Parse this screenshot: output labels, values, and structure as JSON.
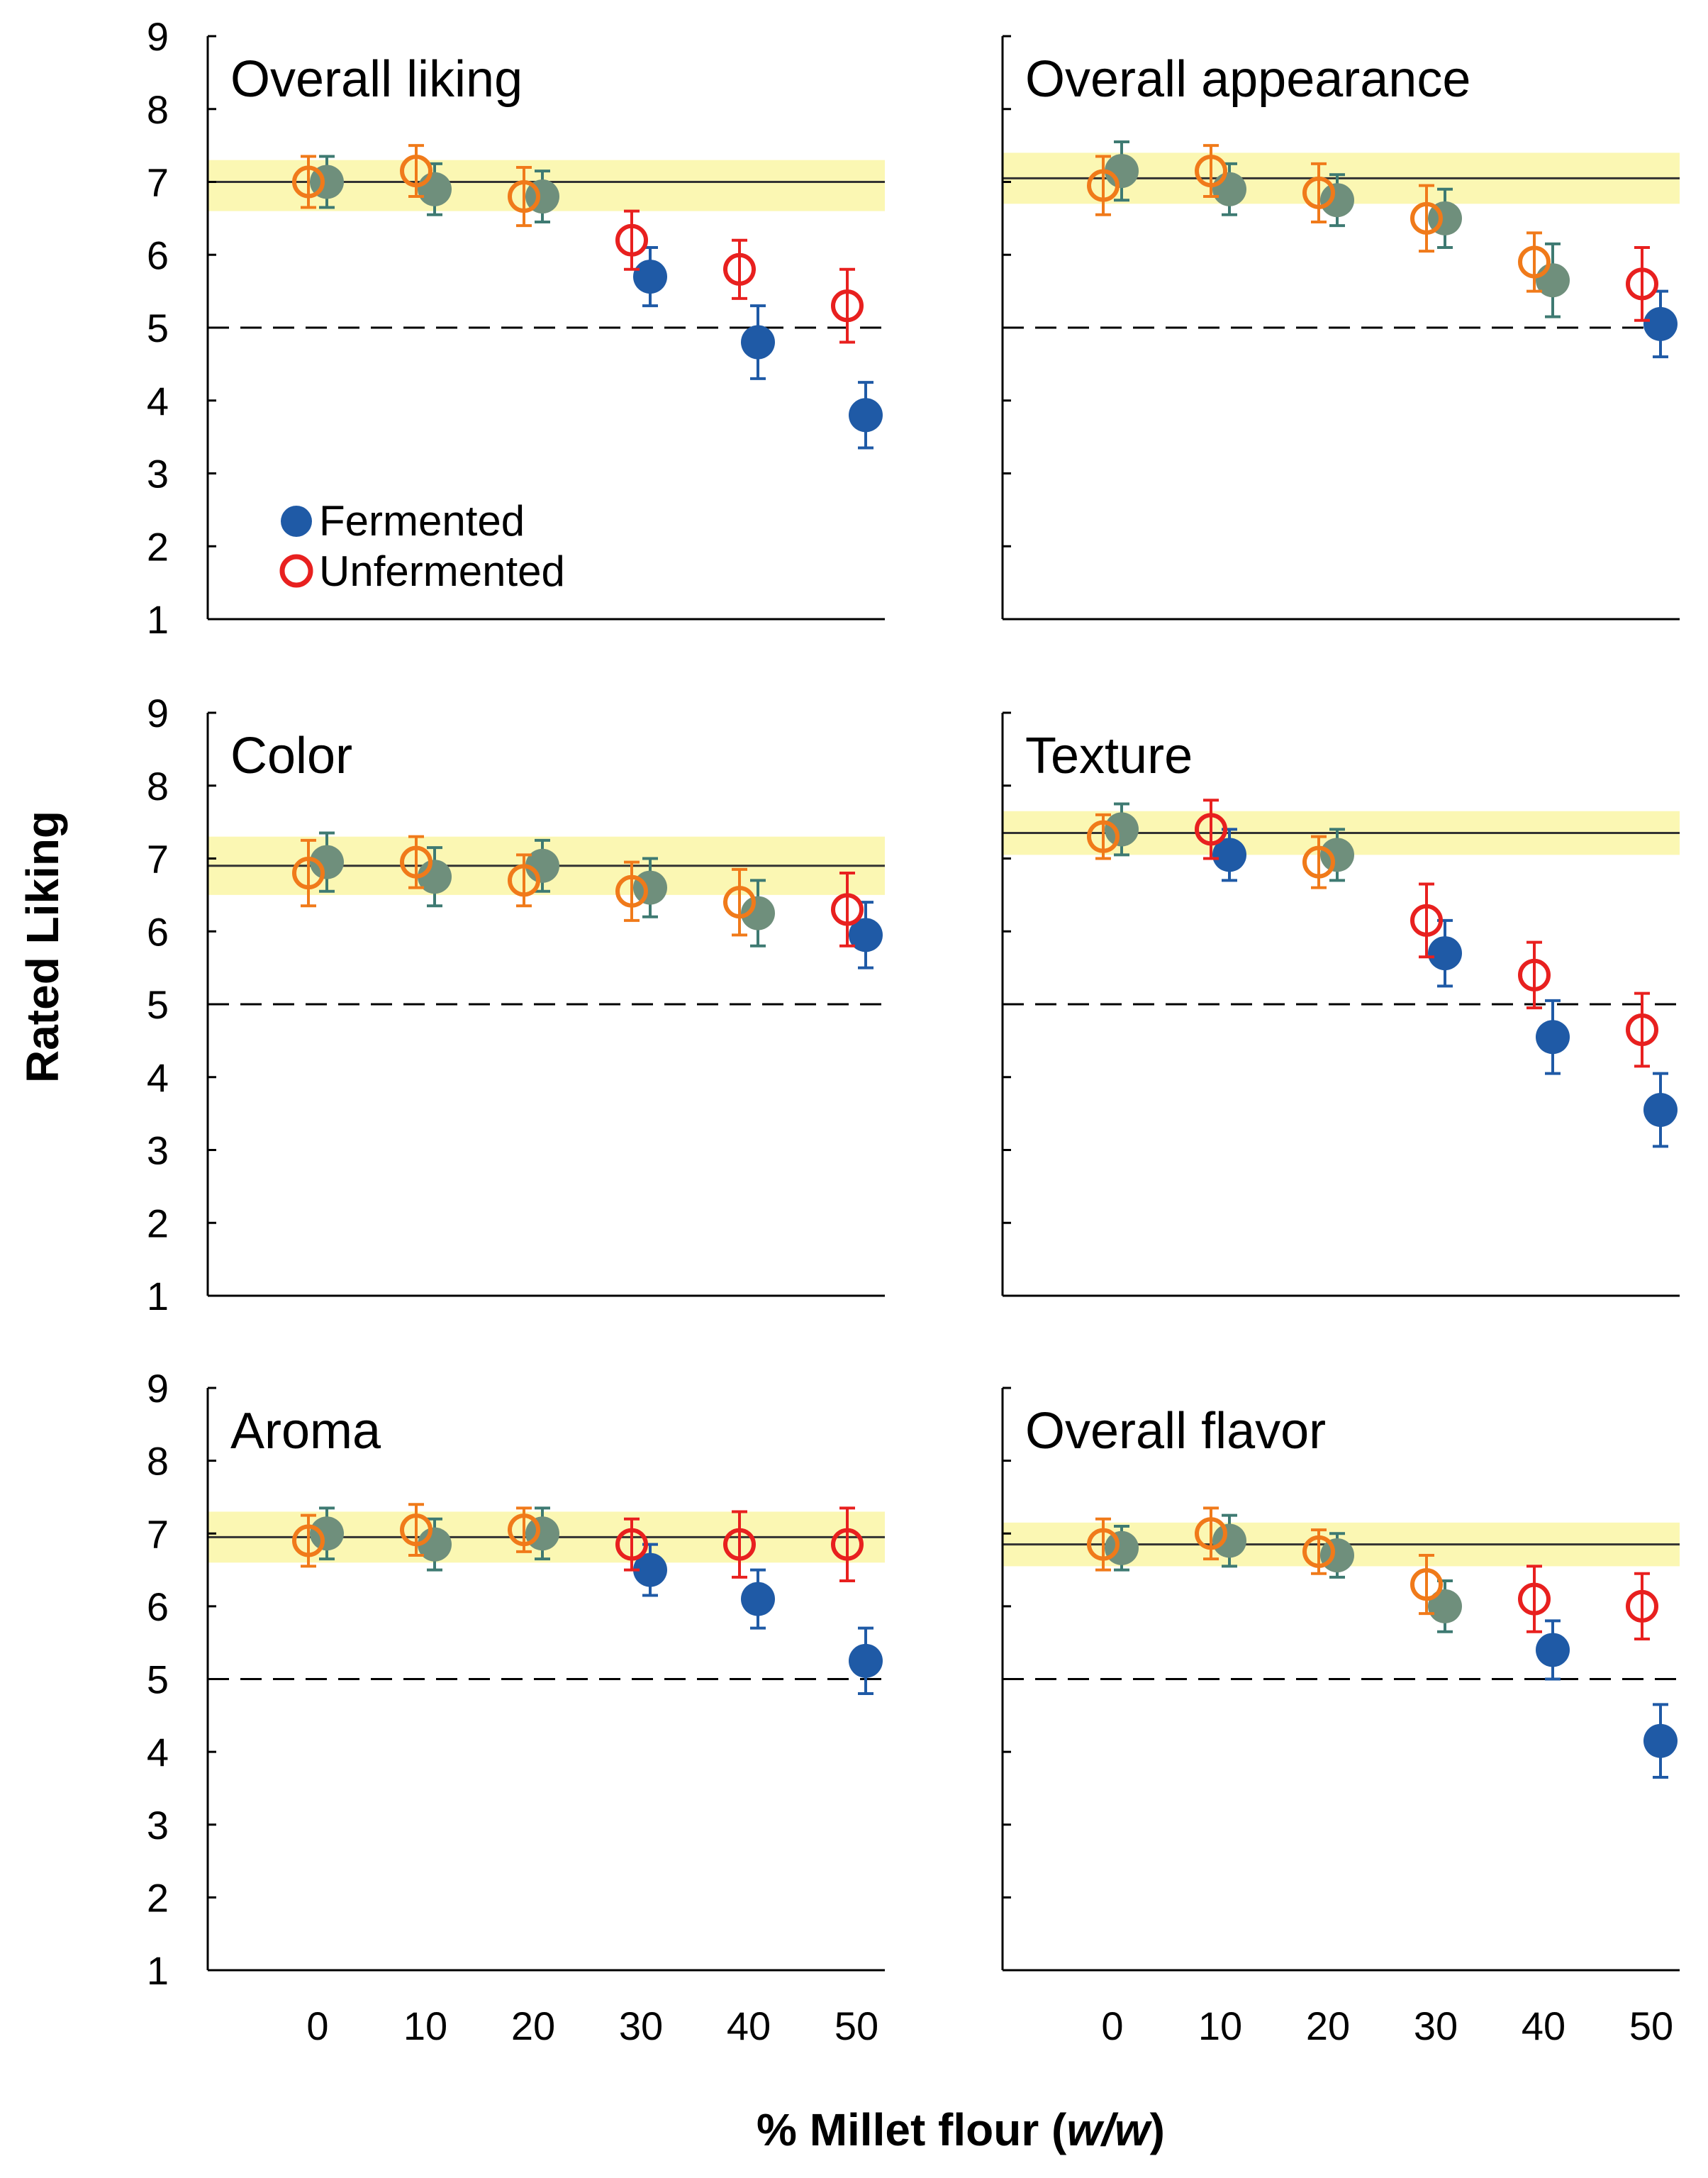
{
  "colors": {
    "fermented": "#1f5aa6",
    "unfermented": "#e8201f",
    "overlap_fill": "#6f8f7c",
    "overlap_ring": "#f07a1a",
    "band": "#fbf7b3",
    "mean_line": "#333333"
  },
  "y_axis_label": "Rated Liking",
  "x_axis_label": {
    "prefix": "% Millet flour (",
    "italic": "w/w",
    "suffix": ")"
  },
  "legend": {
    "fermented": "Fermented",
    "unfermented": "Unfermented"
  },
  "chart_data": [
    {
      "type": "scatter",
      "title": "Overall liking",
      "categories": [
        "0",
        "10",
        "20",
        "30",
        "40",
        "50"
      ],
      "ylim": [
        1,
        9
      ],
      "yticks": [
        "1",
        "2",
        "3",
        "4",
        "5",
        "6",
        "7",
        "8",
        "9"
      ],
      "reference_line": 7.0,
      "reference_band": [
        6.6,
        7.3
      ],
      "neutral_line": 5,
      "series": [
        {
          "name": "Fermented",
          "values": [
            7.0,
            6.9,
            6.8,
            5.7,
            4.8,
            3.8
          ],
          "errors": [
            0.35,
            0.35,
            0.35,
            0.4,
            0.5,
            0.45
          ]
        },
        {
          "name": "Unfermented",
          "values": [
            7.0,
            7.15,
            6.8,
            6.2,
            5.8,
            5.3
          ],
          "errors": [
            0.35,
            0.35,
            0.4,
            0.4,
            0.4,
            0.5
          ]
        }
      ]
    },
    {
      "type": "scatter",
      "title": "Overall appearance",
      "categories": [
        "0",
        "10",
        "20",
        "30",
        "40",
        "50"
      ],
      "ylim": [
        1,
        9
      ],
      "yticks": [
        "1",
        "2",
        "3",
        "4",
        "5",
        "6",
        "7",
        "8",
        "9"
      ],
      "reference_line": 7.05,
      "reference_band": [
        6.7,
        7.4
      ],
      "neutral_line": 5,
      "series": [
        {
          "name": "Fermented",
          "values": [
            7.15,
            6.9,
            6.75,
            6.5,
            5.65,
            5.05
          ],
          "errors": [
            0.4,
            0.35,
            0.35,
            0.4,
            0.5,
            0.45
          ]
        },
        {
          "name": "Unfermented",
          "values": [
            6.95,
            7.15,
            6.85,
            6.5,
            5.9,
            5.6
          ],
          "errors": [
            0.4,
            0.35,
            0.4,
            0.45,
            0.4,
            0.5
          ]
        }
      ]
    },
    {
      "type": "scatter",
      "title": "Color",
      "categories": [
        "0",
        "10",
        "20",
        "30",
        "40",
        "50"
      ],
      "ylim": [
        1,
        9
      ],
      "yticks": [
        "1",
        "2",
        "3",
        "4",
        "5",
        "6",
        "7",
        "8",
        "9"
      ],
      "reference_line": 6.9,
      "reference_band": [
        6.5,
        7.3
      ],
      "neutral_line": 5,
      "series": [
        {
          "name": "Fermented",
          "values": [
            6.95,
            6.75,
            6.9,
            6.6,
            6.25,
            5.95
          ],
          "errors": [
            0.4,
            0.4,
            0.35,
            0.4,
            0.45,
            0.45
          ]
        },
        {
          "name": "Unfermented",
          "values": [
            6.8,
            6.95,
            6.7,
            6.55,
            6.4,
            6.3
          ],
          "errors": [
            0.45,
            0.35,
            0.35,
            0.4,
            0.45,
            0.5
          ]
        }
      ]
    },
    {
      "type": "scatter",
      "title": "Texture",
      "categories": [
        "0",
        "10",
        "20",
        "30",
        "40",
        "50"
      ],
      "ylim": [
        1,
        9
      ],
      "yticks": [
        "1",
        "2",
        "3",
        "4",
        "5",
        "6",
        "7",
        "8",
        "9"
      ],
      "reference_line": 7.35,
      "reference_band": [
        7.05,
        7.65
      ],
      "neutral_line": 5,
      "series": [
        {
          "name": "Fermented",
          "values": [
            7.4,
            7.05,
            7.05,
            5.7,
            4.55,
            3.55
          ],
          "errors": [
            0.35,
            0.35,
            0.35,
            0.45,
            0.5,
            0.5
          ]
        },
        {
          "name": "Unfermented",
          "values": [
            7.3,
            7.4,
            6.95,
            6.15,
            5.4,
            4.65
          ],
          "errors": [
            0.3,
            0.4,
            0.35,
            0.5,
            0.45,
            0.5
          ]
        }
      ]
    },
    {
      "type": "scatter",
      "title": "Aroma",
      "categories": [
        "0",
        "10",
        "20",
        "30",
        "40",
        "50"
      ],
      "ylim": [
        1,
        9
      ],
      "yticks": [
        "1",
        "2",
        "3",
        "4",
        "5",
        "6",
        "7",
        "8",
        "9"
      ],
      "reference_line": 6.95,
      "reference_band": [
        6.6,
        7.3
      ],
      "neutral_line": 5,
      "series": [
        {
          "name": "Fermented",
          "values": [
            7.0,
            6.85,
            7.0,
            6.5,
            6.1,
            5.25
          ],
          "errors": [
            0.35,
            0.35,
            0.35,
            0.35,
            0.4,
            0.45
          ]
        },
        {
          "name": "Unfermented",
          "values": [
            6.9,
            7.05,
            7.05,
            6.85,
            6.85,
            6.85
          ],
          "errors": [
            0.35,
            0.35,
            0.3,
            0.35,
            0.45,
            0.5
          ]
        }
      ]
    },
    {
      "type": "scatter",
      "title": "Overall flavor",
      "categories": [
        "0",
        "10",
        "20",
        "30",
        "40",
        "50"
      ],
      "ylim": [
        1,
        9
      ],
      "yticks": [
        "1",
        "2",
        "3",
        "4",
        "5",
        "6",
        "7",
        "8",
        "9"
      ],
      "reference_line": 6.85,
      "reference_band": [
        6.55,
        7.15
      ],
      "neutral_line": 5,
      "series": [
        {
          "name": "Fermented",
          "values": [
            6.8,
            6.9,
            6.7,
            6.0,
            5.4,
            4.15
          ],
          "errors": [
            0.3,
            0.35,
            0.3,
            0.35,
            0.4,
            0.5
          ]
        },
        {
          "name": "Unfermented",
          "values": [
            6.85,
            7.0,
            6.75,
            6.3,
            6.1,
            6.0
          ],
          "errors": [
            0.35,
            0.35,
            0.3,
            0.4,
            0.45,
            0.45
          ]
        }
      ]
    }
  ]
}
